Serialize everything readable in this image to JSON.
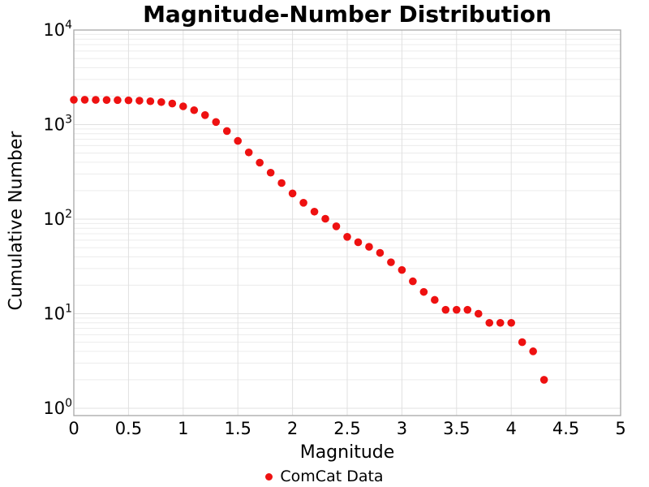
{
  "chart_data": {
    "type": "scatter",
    "title": "Magnitude-Number Distribution",
    "xlabel": "Magnitude",
    "ylabel": "Cumulative Number",
    "series_name": "ComCat Data",
    "x": [
      0.0,
      0.1,
      0.2,
      0.3,
      0.4,
      0.5,
      0.6,
      0.7,
      0.8,
      0.9,
      1.0,
      1.1,
      1.2,
      1.3,
      1.4,
      1.5,
      1.6,
      1.7,
      1.8,
      1.9,
      2.0,
      2.1,
      2.2,
      2.3,
      2.4,
      2.5,
      2.6,
      2.7,
      2.8,
      2.9,
      3.0,
      3.1,
      3.2,
      3.3,
      3.4,
      3.5,
      3.6,
      3.7,
      3.8,
      3.9,
      4.0,
      4.1,
      4.2,
      4.3
    ],
    "y": [
      1830,
      1830,
      1825,
      1820,
      1815,
      1805,
      1790,
      1765,
      1730,
      1670,
      1560,
      1420,
      1260,
      1065,
      855,
      672,
      508,
      396,
      310,
      241,
      187,
      149,
      120,
      101,
      84,
      65,
      57,
      51,
      44,
      35,
      29,
      22,
      17,
      14,
      11,
      11,
      11,
      10,
      8,
      8,
      8,
      5,
      4,
      2
    ],
    "xlim": [
      0,
      5
    ],
    "ylim": [
      1,
      10000
    ],
    "yscale": "log",
    "xticks": [
      0,
      0.5,
      1,
      1.5,
      2,
      2.5,
      3,
      3.5,
      4,
      4.5,
      5
    ],
    "xtick_labels": [
      "0",
      "0.5",
      "1",
      "1.5",
      "2",
      "2.5",
      "3",
      "3.5",
      "4",
      "4.5",
      "5"
    ],
    "ytick_base": "10",
    "ytick_exponents": [
      "0",
      "1",
      "2",
      "3",
      "4"
    ],
    "grid": true,
    "legend_position": "bottom-center",
    "marker_color": "#ee1111",
    "grid_major_color": "#e0e0e0",
    "grid_minor_color": "#ececec",
    "border_color": "#adadad",
    "text_color": "#000000",
    "background_color": "#ffffff"
  }
}
